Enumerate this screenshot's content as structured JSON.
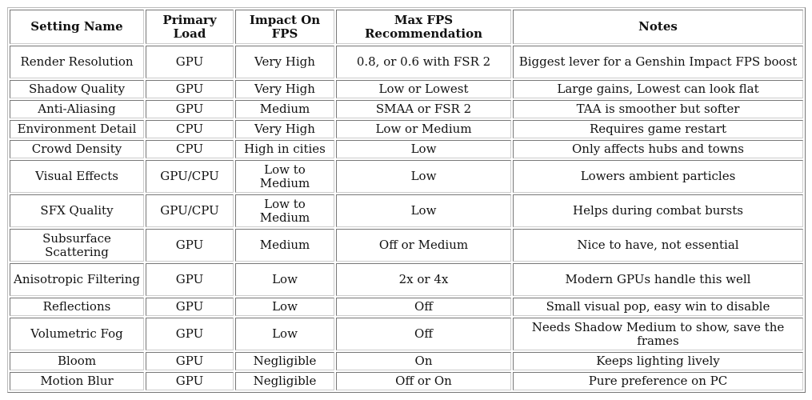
{
  "headers": [
    "Setting Name",
    "Primary Load",
    "Impact On FPS",
    "Max FPS Recommendation",
    "Notes"
  ],
  "rows": [
    [
      "Render Resolution",
      "GPU",
      "Very High",
      "0.8, or 0.6 with FSR 2",
      "Biggest lever for a Genshin Impact FPS boost"
    ],
    [
      "Shadow Quality",
      "GPU",
      "Very High",
      "Low or Lowest",
      "Large gains, Lowest can look flat"
    ],
    [
      "Anti-Aliasing",
      "GPU",
      "Medium",
      "SMAA or FSR 2",
      "TAA is smoother but softer"
    ],
    [
      "Environment Detail",
      "CPU",
      "Very High",
      "Low or Medium",
      "Requires game restart"
    ],
    [
      "Crowd Density",
      "CPU",
      "High in cities",
      "Low",
      "Only affects hubs and towns"
    ],
    [
      "Visual Effects",
      "GPU/CPU",
      "Low to Medium",
      "Low",
      "Lowers ambient particles"
    ],
    [
      "SFX Quality",
      "GPU/CPU",
      "Low to Medium",
      "Low",
      "Helps during combat bursts"
    ],
    [
      "Subsurface Scattering",
      "GPU",
      "Medium",
      "Off or Medium",
      "Nice to have, not essential"
    ],
    [
      "Anisotropic Filtering",
      "GPU",
      "Low",
      "2x or 4x",
      "Modern GPUs handle this well"
    ],
    [
      "Reflections",
      "GPU",
      "Low",
      "Off",
      "Small visual pop, easy win to disable"
    ],
    [
      "Volumetric Fog",
      "GPU",
      "Low",
      "Off",
      "Needs Shadow Medium to show, save the frames"
    ],
    [
      "Bloom",
      "GPU",
      "Negligible",
      "On",
      "Keeps lighting lively"
    ],
    [
      "Motion Blur",
      "GPU",
      "Negligible",
      "Off or On",
      "Pure preference on PC"
    ]
  ]
}
